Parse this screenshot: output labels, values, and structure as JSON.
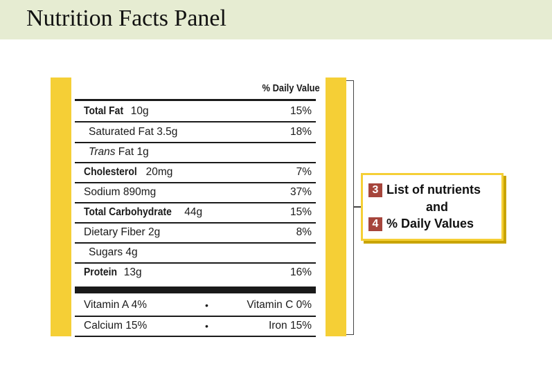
{
  "slide": {
    "title": "Nutrition Facts Panel"
  },
  "label": {
    "dv_header": "% Daily Value",
    "nutrients": [
      {
        "bold": "Total Fat",
        "rest": " 10g",
        "pct": "15%"
      },
      {
        "text": "Saturated Fat 3.5g",
        "pct": "18%"
      },
      {
        "italic": "Trans",
        "rest": " Fat 1g",
        "pct": ""
      },
      {
        "bold": "Cholesterol",
        "rest": " 20mg",
        "pct": "7%"
      },
      {
        "text": "Sodium 890mg",
        "pct": "37%"
      },
      {
        "bold": "Total Carbohydrate",
        "rest": " 44g",
        "pct": "15%"
      },
      {
        "text": "Dietary Fiber 2g",
        "pct": "8%"
      },
      {
        "text": "Sugars 4g",
        "pct": ""
      },
      {
        "bold": "Protein",
        "rest": " 13g",
        "pct": "16%"
      }
    ],
    "vitamins": [
      {
        "left": "Vitamin A 4%",
        "bullet": "•",
        "right": "Vitamin C 0%"
      },
      {
        "left": "Calcium 15%",
        "bullet": "•",
        "right": "Iron 15%"
      }
    ]
  },
  "callout": {
    "badge1": "3",
    "line1": "List of nutrients",
    "line2": "and",
    "badge2": "4",
    "line3": "% Daily Values"
  },
  "colors": {
    "stripe": "#f5cf36",
    "badge": "#a6453c",
    "title_bg": "#e6ecd2"
  }
}
